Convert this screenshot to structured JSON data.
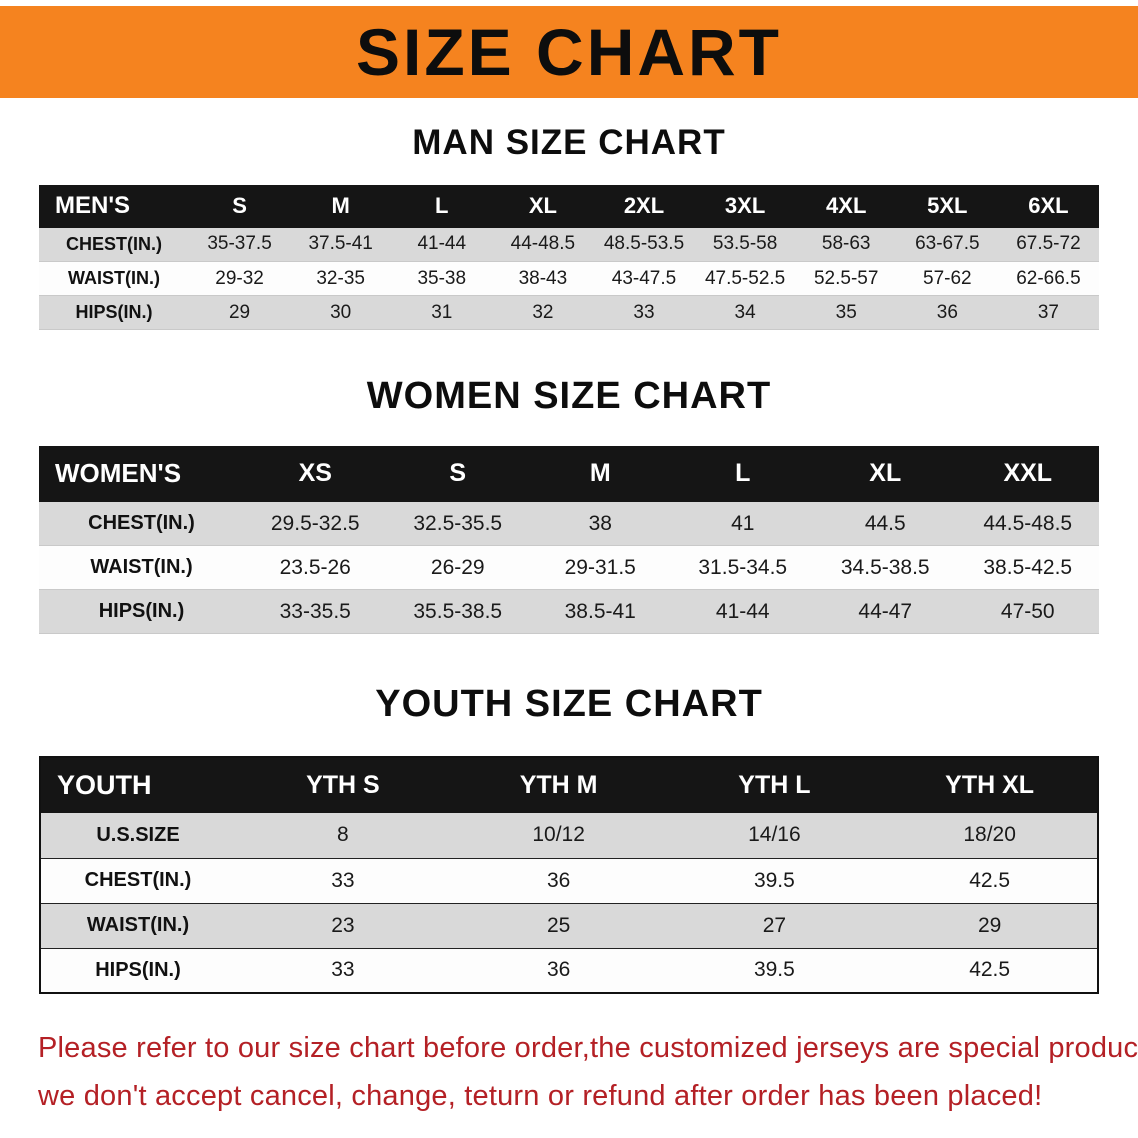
{
  "banner": {
    "title": "SIZE CHART",
    "bg_color": "#f5831f"
  },
  "tables": [
    {
      "name": "men",
      "heading": "MAN SIZE CHART",
      "header": [
        "MEN'S",
        "S",
        "M",
        "L",
        "XL",
        "2XL",
        "3XL",
        "4XL",
        "5XL",
        "6XL"
      ],
      "rows": [
        [
          "CHEST(IN.)",
          "35-37.5",
          "37.5-41",
          "41-44",
          "44-48.5",
          "48.5-53.5",
          "53.5-58",
          "58-63",
          "63-67.5",
          "67.5-72"
        ],
        [
          "WAIST(IN.)",
          "29-32",
          "32-35",
          "35-38",
          "38-43",
          "43-47.5",
          "47.5-52.5",
          "52.5-57",
          "57-62",
          "62-66.5"
        ],
        [
          "HIPS(IN.)",
          "29",
          "30",
          "31",
          "32",
          "33",
          "34",
          "35",
          "36",
          "37"
        ]
      ]
    },
    {
      "name": "women",
      "heading": "WOMEN SIZE CHART",
      "header": [
        "WOMEN'S",
        "XS",
        "S",
        "M",
        "L",
        "XL",
        "XXL"
      ],
      "rows": [
        [
          "CHEST(IN.)",
          "29.5-32.5",
          "32.5-35.5",
          "38",
          "41",
          "44.5",
          "44.5-48.5"
        ],
        [
          "WAIST(IN.)",
          "23.5-26",
          "26-29",
          "29-31.5",
          "31.5-34.5",
          "34.5-38.5",
          "38.5-42.5"
        ],
        [
          "HIPS(IN.)",
          "33-35.5",
          "35.5-38.5",
          "38.5-41",
          "41-44",
          "44-47",
          "47-50"
        ]
      ]
    },
    {
      "name": "youth",
      "heading": "YOUTH SIZE CHART",
      "header": [
        "YOUTH",
        "YTH S",
        "YTH M",
        "YTH L",
        "YTH XL"
      ],
      "rows": [
        [
          "U.S.SIZE",
          "8",
          "10/12",
          "14/16",
          "18/20"
        ],
        [
          "CHEST(IN.)",
          "33",
          "36",
          "39.5",
          "42.5"
        ],
        [
          "WAIST(IN.)",
          "23",
          "25",
          "27",
          "29"
        ],
        [
          "HIPS(IN.)",
          "33",
          "36",
          "39.5",
          "42.5"
        ]
      ]
    }
  ],
  "notice": {
    "line1": "Please refer to our size chart before order,the customized jerseys are special products,",
    "line2": "we don't accept cancel, change, teturn or refund after order has been placed!",
    "color": "#b42025"
  }
}
